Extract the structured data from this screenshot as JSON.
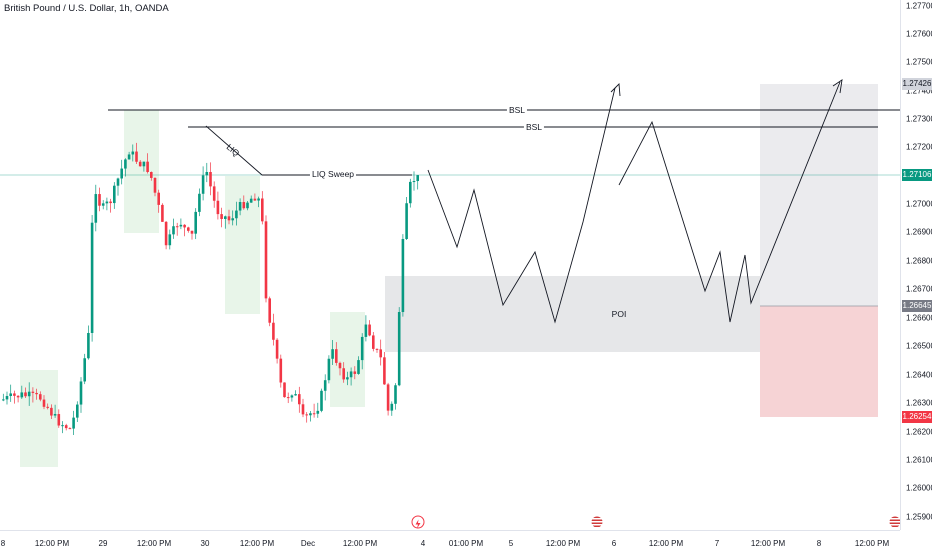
{
  "header": {
    "title": "British Pound / U.S. Dollar, 1h, OANDA"
  },
  "price_axis": {
    "ticks": [
      "1.27700",
      "1.27600",
      "1.27500",
      "1.27400",
      "1.27300",
      "1.27200",
      "1.27000",
      "1.26900",
      "1.26800",
      "1.26700",
      "1.26600",
      "1.26500",
      "1.26400",
      "1.26300",
      "1.26200",
      "1.26100",
      "1.26000",
      "1.25900"
    ],
    "tags": [
      {
        "label": "1.27426",
        "kind": "target"
      },
      {
        "label": "1.27106",
        "kind": "current"
      },
      {
        "label": "1.26645",
        "kind": "entry"
      },
      {
        "label": "1.26254",
        "kind": "stop"
      }
    ]
  },
  "time_axis": {
    "labels": [
      "8",
      "12:00 PM",
      "29",
      "12:00 PM",
      "30",
      "12:00 PM",
      "Dec",
      "12:00 PM",
      "4",
      "01:00 PM",
      "5",
      "12:00 PM",
      "6",
      "12:00 PM",
      "7",
      "12:00 PM",
      "8",
      "12:00 PM"
    ]
  },
  "annotations": {
    "bsl_upper": "BSL",
    "bsl_lower": "BSL",
    "liq": "LIQ",
    "liq_sweep": "LIQ Sweep",
    "poi": "POI"
  },
  "colors": {
    "bull": "#089981",
    "bear": "#f23645",
    "current_price": "#089981",
    "stop": "#f23645",
    "target": "#787b86",
    "entry": "#787b86",
    "highlight_box": "#e8f5e9",
    "poi_box": "#e6e7ea",
    "stop_zone": "#f6d3d5",
    "target_zone": "#ebebee"
  },
  "icons": {
    "event_marker": "lightning-event-icon",
    "us_flag": "us-flag-icon"
  }
}
